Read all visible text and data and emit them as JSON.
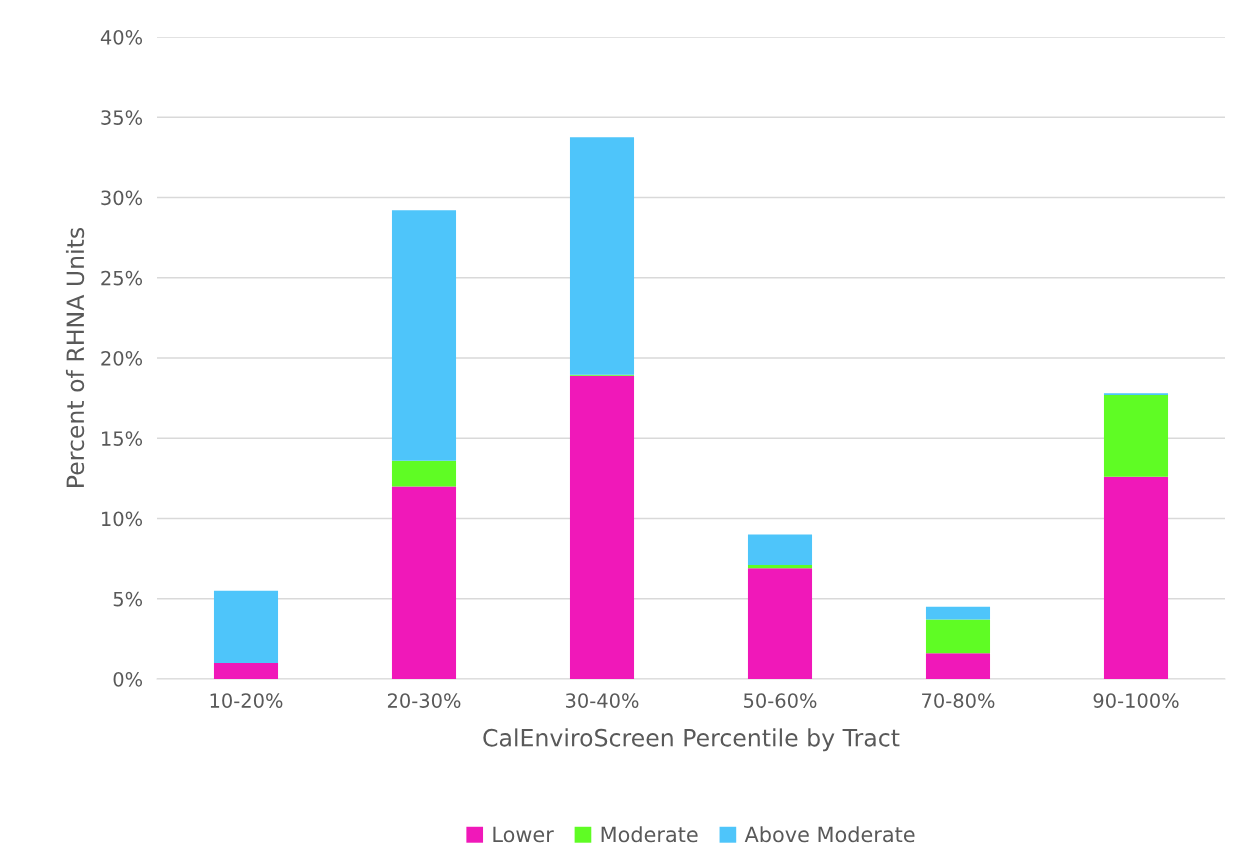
{
  "chart_data": {
    "type": "bar",
    "stacked": true,
    "xlabel": "CalEnviroScreen Percentile by Tract",
    "ylabel": "Percent of RHNA Units",
    "categories": [
      "10-20%",
      "20-30%",
      "30-40%",
      "50-60%",
      "70-80%",
      "90-100%"
    ],
    "series": [
      {
        "name": "Lower",
        "color": "#f018b9",
        "values": [
          1.0,
          12.0,
          18.9,
          6.9,
          1.6,
          12.6
        ]
      },
      {
        "name": "Moderate",
        "color": "#5ffc24",
        "values": [
          0,
          1.6,
          0.05,
          0.2,
          2.1,
          5.1
        ]
      },
      {
        "name": "Above Moderate",
        "color": "#4ec5fa",
        "values": [
          4.5,
          15.6,
          14.8,
          1.9,
          0.8,
          0.1
        ]
      }
    ],
    "ylim": [
      0,
      40
    ],
    "yticks": [
      {
        "value": 0,
        "label": "0%"
      },
      {
        "value": 5,
        "label": "5%"
      },
      {
        "value": 10,
        "label": "10%"
      },
      {
        "value": 15,
        "label": "15%"
      },
      {
        "value": 20,
        "label": "20%"
      },
      {
        "value": 25,
        "label": "25%"
      },
      {
        "value": 30,
        "label": "30%"
      },
      {
        "value": 35,
        "label": "35%"
      },
      {
        "value": 40,
        "label": "40%"
      }
    ],
    "grid": "y",
    "legend": "bottom"
  }
}
